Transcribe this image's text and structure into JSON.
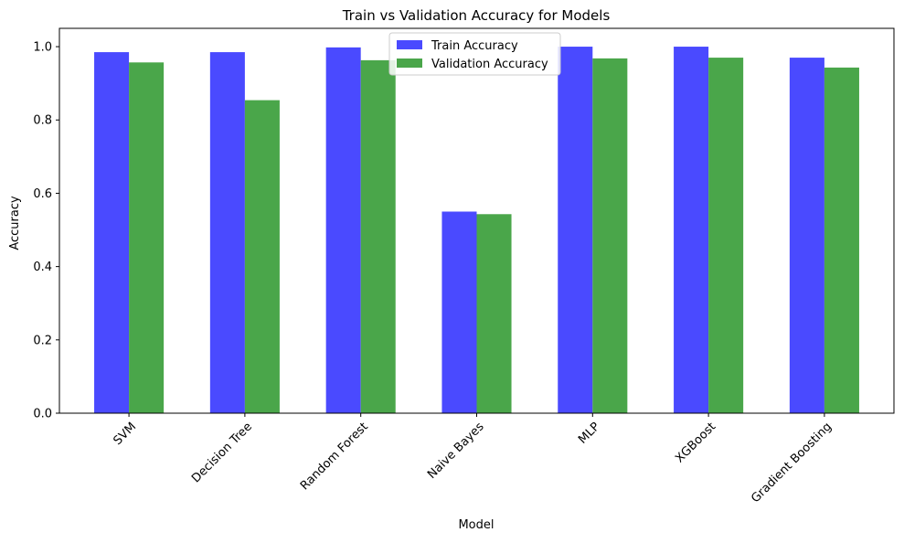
{
  "chart_data": {
    "type": "bar",
    "title": "Train vs Validation Accuracy for Models",
    "xlabel": "Model",
    "ylabel": "Accuracy",
    "categories": [
      "SVM",
      "Decision Tree",
      "Random Forest",
      "Naive Bayes",
      "MLP",
      "XGBoost",
      "Gradient Boosting"
    ],
    "series": [
      {
        "name": "Train Accuracy",
        "color": "#4a4aff",
        "values": [
          0.985,
          0.985,
          0.998,
          0.55,
          1.0,
          1.0,
          0.97
        ]
      },
      {
        "name": "Validation Accuracy",
        "color": "#4aa64a",
        "values": [
          0.957,
          0.854,
          0.963,
          0.543,
          0.968,
          0.97,
          0.943
        ]
      }
    ],
    "ylim": [
      0,
      1.05
    ],
    "yticks": [
      0.0,
      0.2,
      0.4,
      0.6,
      0.8,
      1.0
    ],
    "ytick_labels": [
      "0.0",
      "0.2",
      "0.4",
      "0.6",
      "0.8",
      "1.0"
    ],
    "grid": false,
    "legend": "upper center",
    "xtick_rotation": 45
  }
}
